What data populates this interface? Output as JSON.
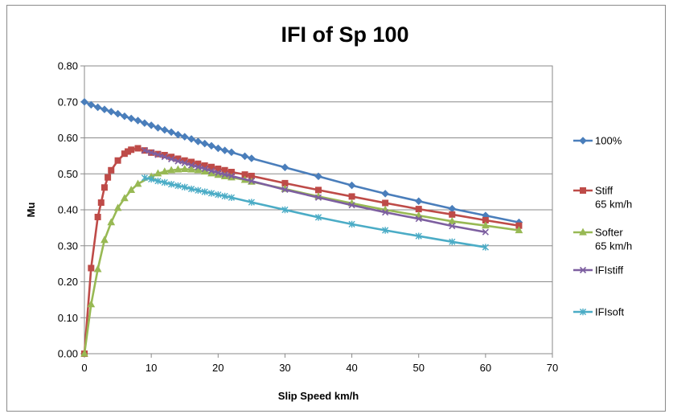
{
  "chart_data": {
    "type": "line",
    "title": "IFI of Sp 100",
    "xlabel": "Slip Speed km/h",
    "ylabel": "Mu",
    "xlim": [
      0,
      70
    ],
    "ylim": [
      0,
      0.8
    ],
    "x_ticks": [
      "0",
      "10",
      "20",
      "30",
      "40",
      "50",
      "60",
      "70"
    ],
    "y_ticks": [
      "0.00",
      "0.10",
      "0.20",
      "0.30",
      "0.40",
      "0.50",
      "0.60",
      "0.70",
      "0.80"
    ],
    "grid": "horizontal",
    "legend": "right",
    "series": [
      {
        "name": "100%",
        "color": "#4a7ebb",
        "marker": "diamond",
        "x": [
          0,
          1,
          2,
          3,
          4,
          5,
          6,
          7,
          8,
          9,
          10,
          11,
          12,
          13,
          14,
          15,
          16,
          17,
          18,
          19,
          20,
          21,
          22,
          24,
          25,
          30,
          35,
          40,
          45,
          50,
          55,
          60,
          65
        ],
        "y": [
          0.7,
          0.692,
          0.685,
          0.679,
          0.673,
          0.667,
          0.66,
          0.654,
          0.648,
          0.641,
          0.635,
          0.628,
          0.622,
          0.616,
          0.609,
          0.603,
          0.597,
          0.59,
          0.584,
          0.578,
          0.571,
          0.565,
          0.56,
          0.549,
          0.543,
          0.518,
          0.493,
          0.468,
          0.445,
          0.424,
          0.403,
          0.384,
          0.365
        ]
      },
      {
        "name": "Stiff\n65 km/h",
        "color": "#be4b48",
        "marker": "square",
        "x": [
          0,
          1,
          2,
          2.5,
          3,
          3.5,
          4,
          5,
          6,
          6.5,
          7,
          8,
          9,
          10,
          11,
          12,
          13,
          14,
          15,
          16,
          17,
          18,
          19,
          20,
          21,
          22,
          24,
          25,
          30,
          35,
          40,
          45,
          50,
          55,
          60,
          65
        ],
        "y": [
          0.0,
          0.238,
          0.38,
          0.42,
          0.462,
          0.49,
          0.51,
          0.537,
          0.556,
          0.562,
          0.567,
          0.571,
          0.565,
          0.559,
          0.555,
          0.552,
          0.547,
          0.542,
          0.537,
          0.533,
          0.528,
          0.523,
          0.519,
          0.514,
          0.51,
          0.505,
          0.498,
          0.494,
          0.474,
          0.455,
          0.437,
          0.419,
          0.402,
          0.387,
          0.371,
          0.356
        ]
      },
      {
        "name": "Softer\n65 km/h",
        "color": "#98b954",
        "marker": "triangle",
        "x": [
          0,
          1,
          2,
          3,
          4,
          5,
          6,
          7,
          8,
          10,
          11,
          12,
          13,
          14,
          15,
          16,
          17,
          18,
          19,
          20,
          21,
          22,
          24,
          25,
          30,
          35,
          40,
          45,
          50,
          55,
          60,
          65
        ],
        "y": [
          0.0,
          0.137,
          0.235,
          0.316,
          0.365,
          0.405,
          0.432,
          0.455,
          0.472,
          0.492,
          0.501,
          0.506,
          0.51,
          0.512,
          0.513,
          0.512,
          0.51,
          0.506,
          0.501,
          0.497,
          0.493,
          0.49,
          0.483,
          0.478,
          0.458,
          0.437,
          0.418,
          0.4,
          0.384,
          0.368,
          0.356,
          0.343
        ]
      },
      {
        "name": "IFIstiff",
        "color": "#7d5fa0",
        "marker": "x",
        "x": [
          9,
          10,
          11,
          12,
          13,
          14,
          15,
          16,
          17,
          18,
          19,
          20,
          21,
          22,
          25,
          30,
          35,
          40,
          45,
          50,
          55,
          60
        ],
        "y": [
          0.565,
          0.559,
          0.553,
          0.547,
          0.541,
          0.535,
          0.53,
          0.524,
          0.519,
          0.514,
          0.508,
          0.503,
          0.498,
          0.494,
          0.48,
          0.456,
          0.434,
          0.413,
          0.393,
          0.375,
          0.355,
          0.338
        ]
      },
      {
        "name": "IFIsoft",
        "color": "#4bacc6",
        "marker": "star",
        "x": [
          9,
          10,
          11,
          12,
          13,
          14,
          15,
          16,
          17,
          18,
          19,
          20,
          21,
          22,
          25,
          30,
          35,
          40,
          45,
          50,
          55,
          60
        ],
        "y": [
          0.489,
          0.485,
          0.48,
          0.476,
          0.471,
          0.467,
          0.463,
          0.458,
          0.454,
          0.45,
          0.446,
          0.442,
          0.438,
          0.434,
          0.421,
          0.4,
          0.379,
          0.36,
          0.343,
          0.327,
          0.311,
          0.296
        ]
      }
    ]
  }
}
